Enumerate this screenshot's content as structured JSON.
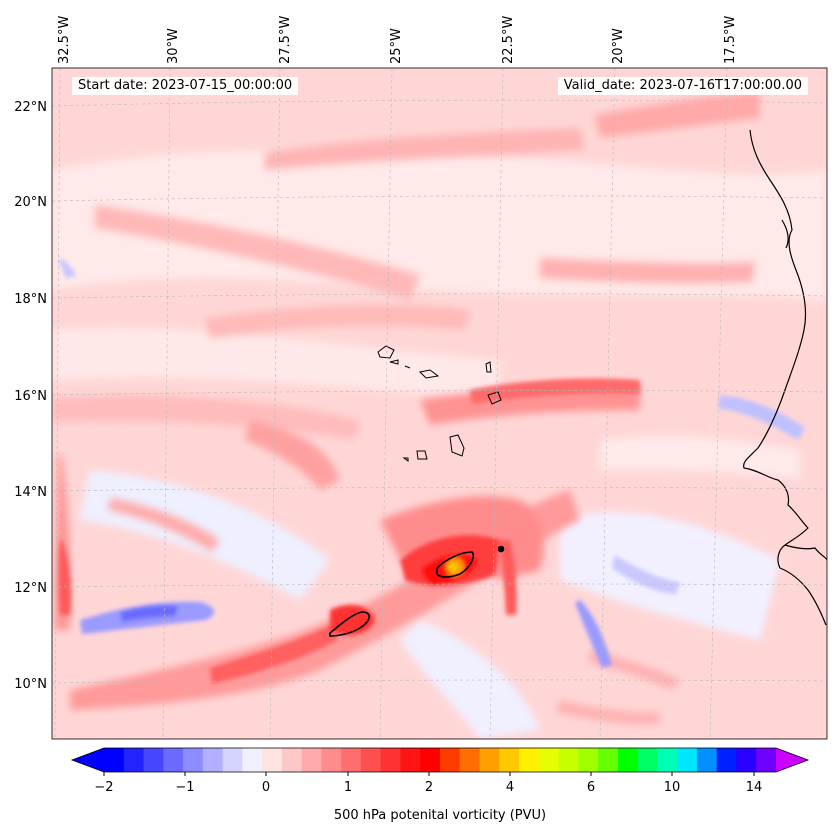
{
  "map": {
    "start_date": "Start date: 2023-07-15_00:00:00",
    "valid_date": "Valid_date: 2023-07-16T17:00:00.00",
    "lon_labels": [
      "32.5°W",
      "30°W",
      "27.5°W",
      "25°W",
      "22.5°W",
      "20°W",
      "17.5°W"
    ],
    "lat_labels": [
      "22°N",
      "20°N",
      "18°N",
      "16°N",
      "14°N",
      "12°N",
      "10°N"
    ]
  },
  "colorbar": {
    "label": "500 hPa potenital vorticity (PVU)",
    "tick_labels": [
      "−2",
      "−1",
      "0",
      "1",
      "2",
      "4",
      "6",
      "10",
      "14"
    ],
    "colors": [
      "#0000ff",
      "#2323ff",
      "#4646ff",
      "#6a6aff",
      "#8d8dff",
      "#b0b0ff",
      "#d4d4ff",
      "#f0f0ff",
      "#ffe4e4",
      "#ffc8c8",
      "#ffaaaa",
      "#ff8c8c",
      "#ff6e6e",
      "#ff5050",
      "#ff3232",
      "#ff1414",
      "#ff0000",
      "#ff3c00",
      "#ff6e00",
      "#ffa000",
      "#ffc800",
      "#fff000",
      "#e6ff00",
      "#c8ff00",
      "#a0ff00",
      "#64ff00",
      "#00ff00",
      "#00ff64",
      "#00ffb4",
      "#00e6ff",
      "#0090ff",
      "#0020ff",
      "#2a00ff",
      "#7000ff"
    ],
    "min_color": "#0000ff",
    "max_color": "#cc00ff"
  }
}
